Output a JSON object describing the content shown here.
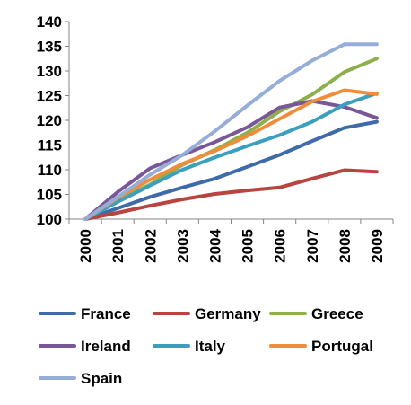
{
  "chart_data": {
    "type": "line",
    "title": "",
    "xlabel": "",
    "ylabel": "",
    "ylim": [
      100,
      140
    ],
    "yticks": [
      100,
      105,
      110,
      115,
      120,
      125,
      130,
      135,
      140
    ],
    "categories": [
      "2000",
      "2001",
      "2002",
      "2003",
      "2004",
      "2005",
      "2006",
      "2007",
      "2008",
      "2009"
    ],
    "grid": false,
    "legend_position": "bottom",
    "series": [
      {
        "name": "France",
        "color": "#3F6BA8",
        "values": [
          100,
          102.2,
          104.5,
          106.4,
          108.2,
          110.6,
          113.0,
          115.8,
          118.5,
          119.7
        ]
      },
      {
        "name": "Germany",
        "color": "#B7443F",
        "values": [
          100,
          101.3,
          102.7,
          104.0,
          105.1,
          105.8,
          106.4,
          108.2,
          109.9,
          109.6
        ]
      },
      {
        "name": "Greece",
        "color": "#8CB04C",
        "values": [
          100,
          103.8,
          107.0,
          111.0,
          114.0,
          117.5,
          121.8,
          125.2,
          129.8,
          132.5
        ]
      },
      {
        "name": "Ireland",
        "color": "#7A5796",
        "values": [
          100,
          105.5,
          110.3,
          113.0,
          115.6,
          118.6,
          122.6,
          123.9,
          122.7,
          120.5
        ]
      },
      {
        "name": "Italy",
        "color": "#3C9FBF",
        "values": [
          100,
          103.5,
          106.8,
          110.0,
          112.5,
          114.8,
          117.0,
          119.7,
          123.2,
          125.5
        ]
      },
      {
        "name": "Portugal",
        "color": "#F08D3C",
        "values": [
          100,
          104.3,
          108.0,
          111.2,
          113.8,
          116.8,
          120.3,
          123.8,
          126.1,
          125.3
        ]
      },
      {
        "name": "Spain",
        "color": "#96AED7",
        "values": [
          100,
          104.5,
          109.0,
          113.0,
          117.8,
          123.0,
          128.0,
          132.1,
          135.4,
          135.4
        ]
      }
    ]
  }
}
